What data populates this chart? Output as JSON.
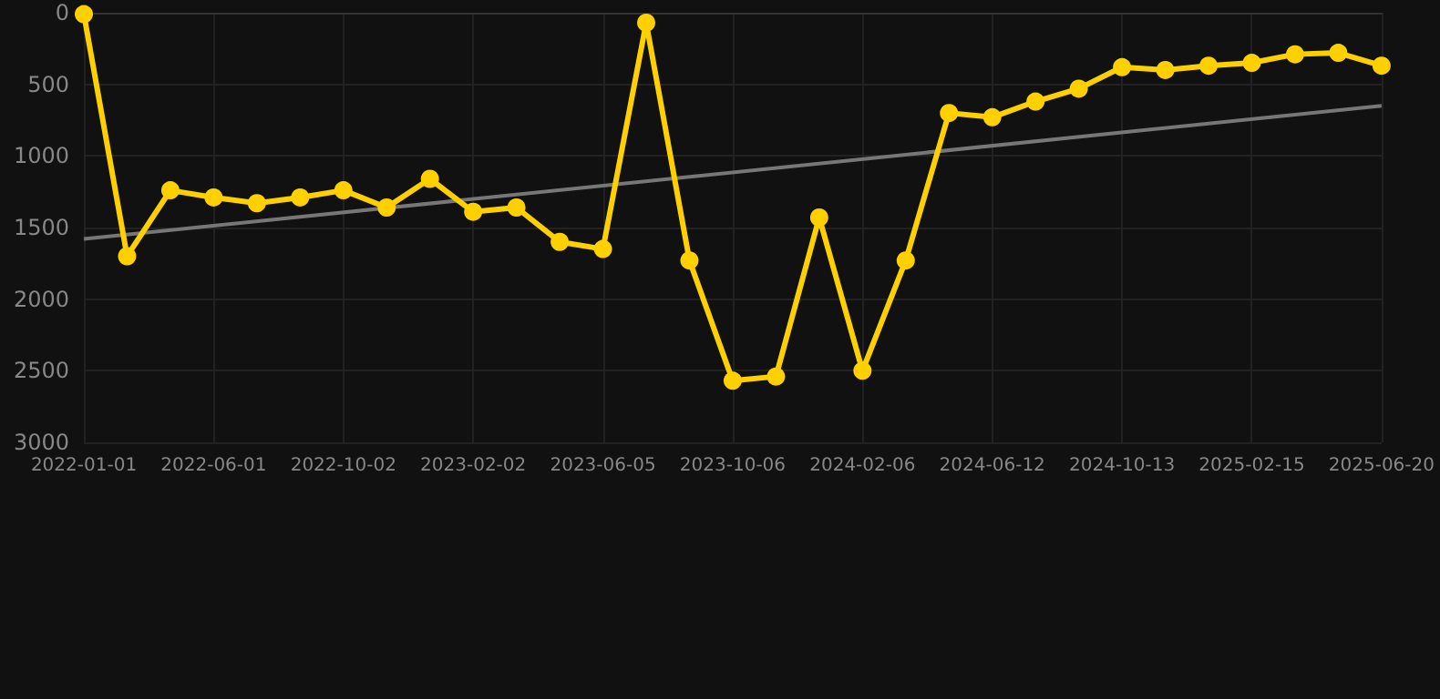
{
  "chart_data": {
    "type": "line",
    "categories": [
      "2022-01-01",
      null,
      null,
      "2022-06-01",
      null,
      null,
      "2022-10-02",
      null,
      null,
      "2023-02-02",
      null,
      null,
      "2023-06-05",
      null,
      null,
      "2023-10-06",
      null,
      null,
      "2024-02-06",
      null,
      null,
      "2024-06-12",
      null,
      null,
      "2024-10-13",
      null,
      null,
      "2025-02-15",
      null,
      null,
      "2025-06-20"
    ],
    "series": [
      {
        "color": "#ffd000",
        "marker": "circle",
        "values": [
          10,
          1700,
          1240,
          1290,
          1330,
          1290,
          1240,
          1360,
          1160,
          1390,
          1360,
          1600,
          1650,
          70,
          1730,
          2570,
          2540,
          1430,
          2500,
          1730,
          700,
          730,
          620,
          530,
          380,
          400,
          370,
          350,
          290,
          280,
          370
        ]
      },
      {
        "type": "line",
        "color": "#777777",
        "marker": "none",
        "values": [
          1580,
          null,
          null,
          null,
          null,
          null,
          null,
          null,
          null,
          null,
          null,
          null,
          null,
          null,
          null,
          null,
          null,
          null,
          null,
          null,
          null,
          null,
          null,
          null,
          null,
          null,
          null,
          null,
          null,
          null,
          650
        ]
      }
    ],
    "ylim": [
      3000,
      0
    ],
    "yticks": [
      0,
      500,
      1000,
      1500,
      2000,
      2500,
      3000
    ],
    "grid": true,
    "line_style": "solid"
  }
}
